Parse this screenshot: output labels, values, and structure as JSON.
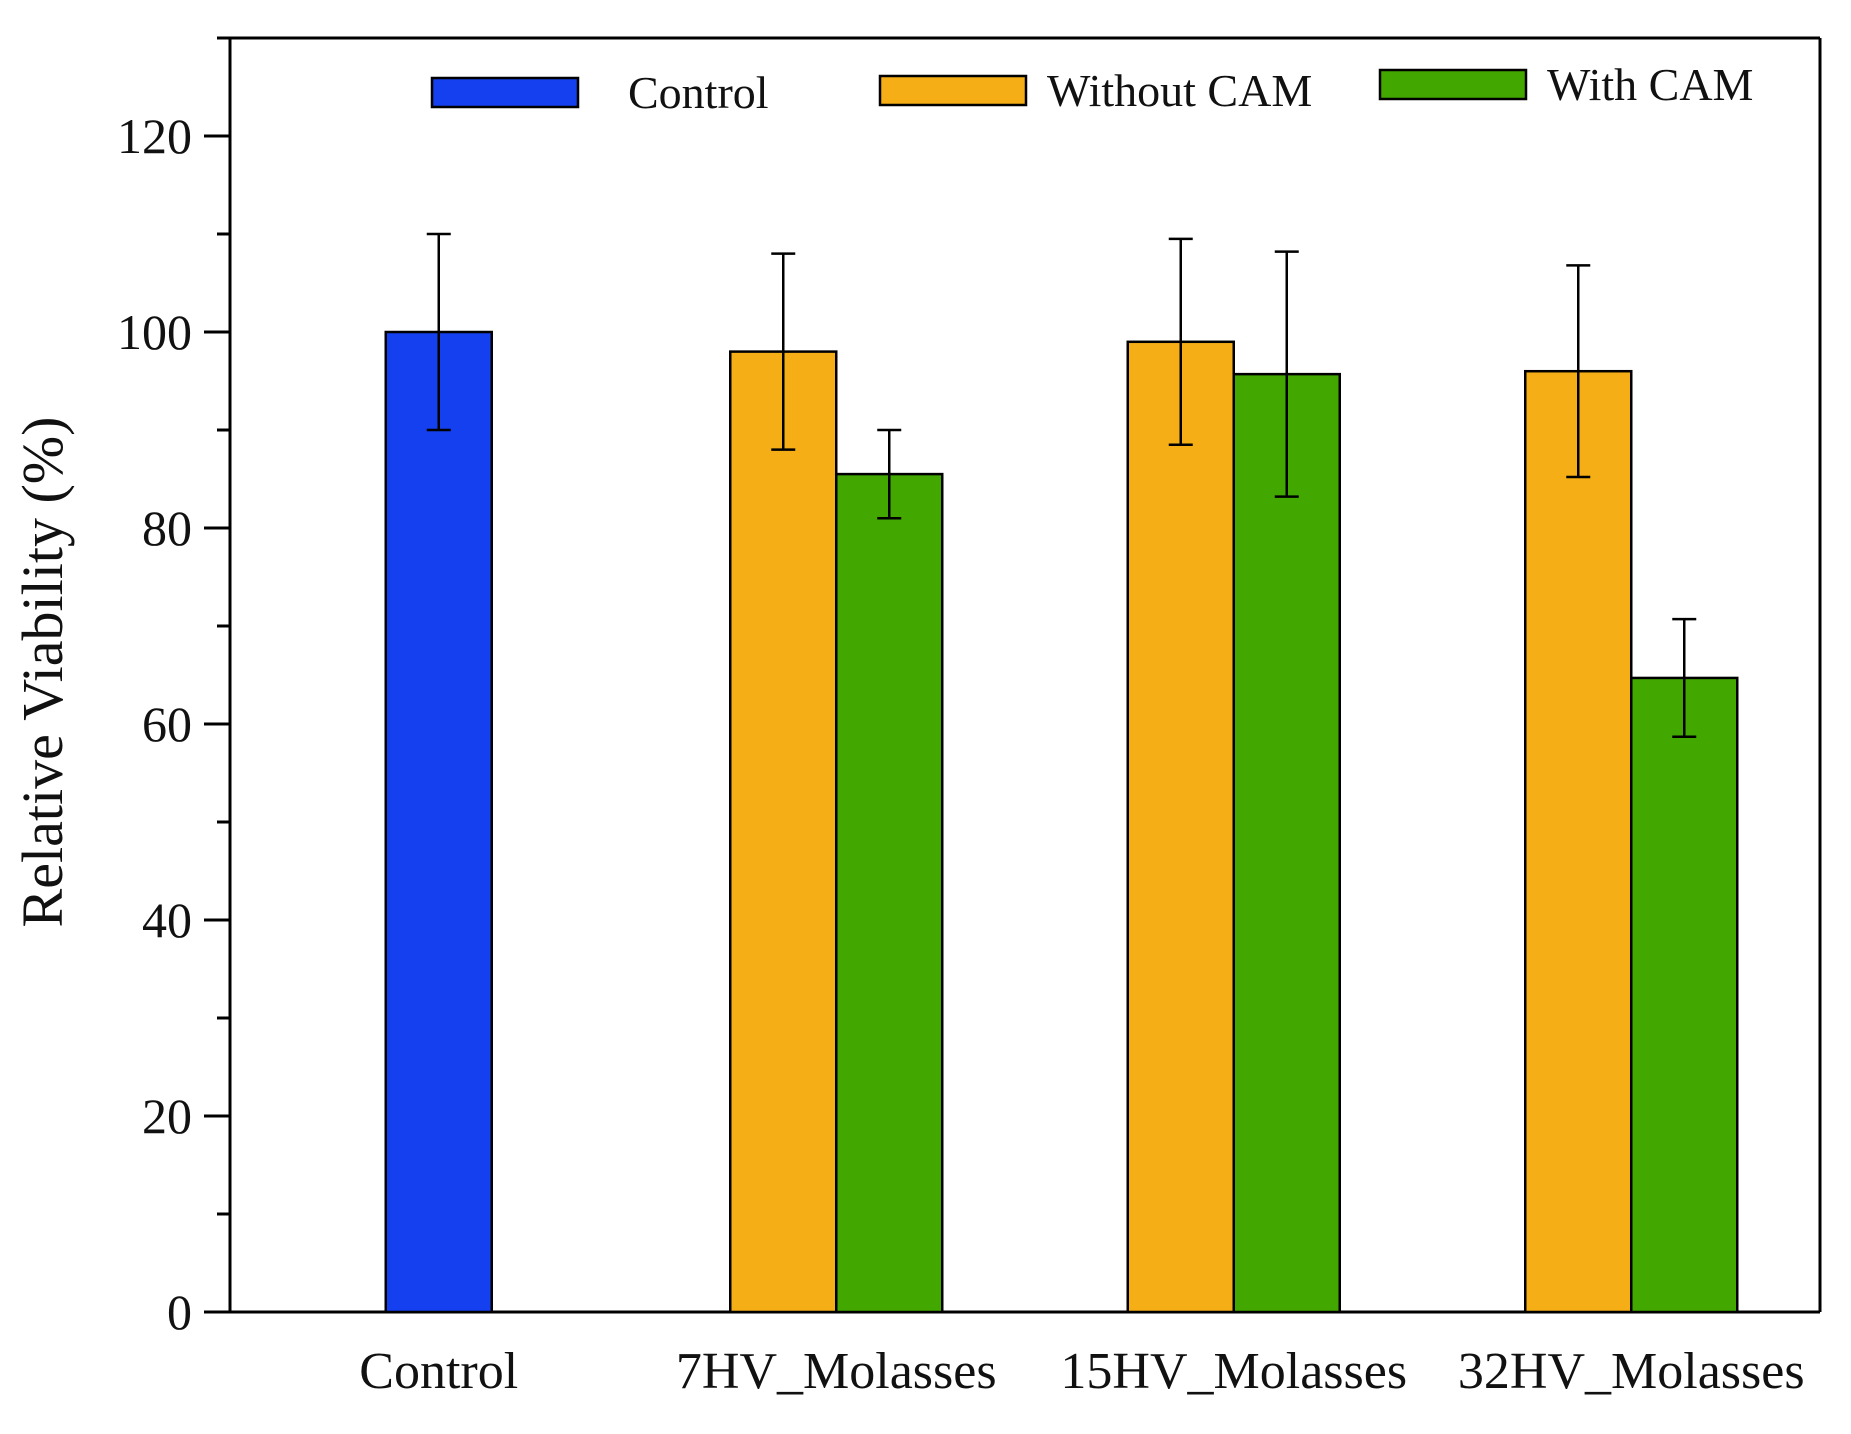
{
  "chart_data": {
    "type": "bar",
    "title": "",
    "xlabel": "",
    "ylabel": "Relative Viability (%)",
    "ylim": [
      0,
      130
    ],
    "yticks": [
      0,
      20,
      40,
      60,
      80,
      100,
      120
    ],
    "grid": false,
    "legend_position": "top",
    "categories": [
      "Control",
      "7HV_Molasses",
      "15HV_Molasses",
      "32HV_Molasses"
    ],
    "series": [
      {
        "name": "Control",
        "color": "#1540f0",
        "values": [
          100,
          null,
          null,
          null
        ],
        "errors": [
          10,
          null,
          null,
          null
        ]
      },
      {
        "name": "Without CAM",
        "color": "#f6ae16",
        "values": [
          null,
          98,
          99,
          96
        ],
        "errors": [
          null,
          10,
          10.5,
          10.8
        ]
      },
      {
        "name": "With CAM",
        "color": "#42a800",
        "values": [
          null,
          85.5,
          95.7,
          64.7
        ],
        "errors": [
          null,
          4.5,
          12.5,
          6
        ]
      }
    ]
  }
}
